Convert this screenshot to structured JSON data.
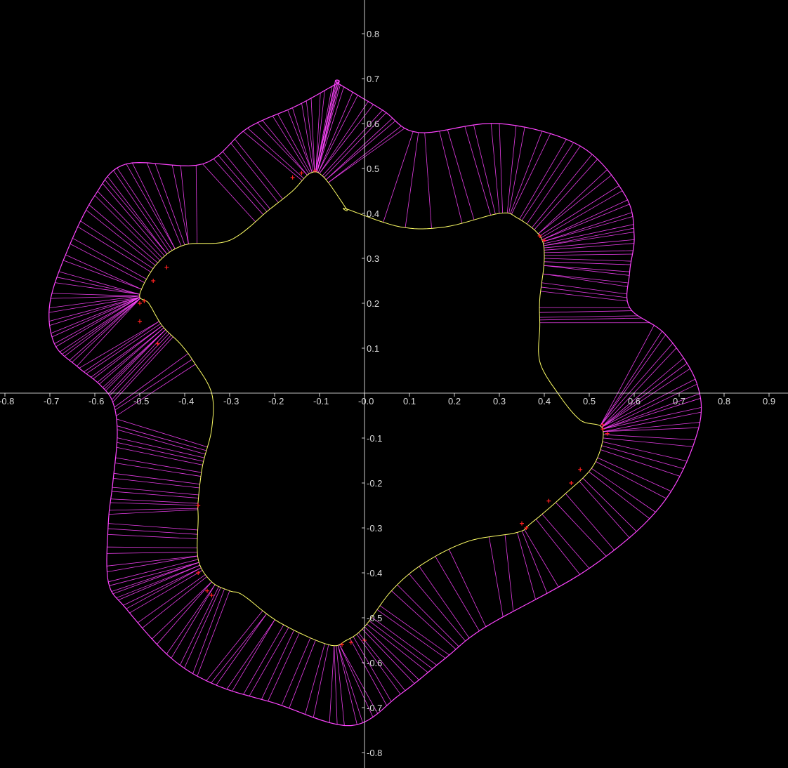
{
  "chart_data": {
    "type": "line",
    "title": "",
    "xlabel": "",
    "ylabel": "",
    "xlim": [
      -0.8,
      0.9
    ],
    "ylim": [
      -0.8,
      0.8
    ],
    "grid": false,
    "x_ticks": [
      "-0.8",
      "-0.7",
      "-0.6",
      "-0.5",
      "-0.4",
      "-0.3",
      "-0.2",
      "-0.1",
      "-0.0",
      "0.1",
      "0.2",
      "0.3",
      "0.4",
      "0.5",
      "0.6",
      "0.7",
      "0.8",
      "0.9"
    ],
    "y_ticks": [
      "0.8",
      "0.7",
      "0.6",
      "0.5",
      "0.4",
      "0.3",
      "0.2",
      "0.1",
      "-0.1",
      "-0.2",
      "-0.3",
      "-0.4",
      "-0.5",
      "-0.6",
      "-0.7",
      "-0.8"
    ],
    "x_tick_values": [
      -0.8,
      -0.7,
      -0.6,
      -0.5,
      -0.4,
      -0.3,
      -0.2,
      -0.1,
      0.0,
      0.1,
      0.2,
      0.3,
      0.4,
      0.5,
      0.6,
      0.7,
      0.8,
      0.9
    ],
    "y_tick_values": [
      0.8,
      0.7,
      0.6,
      0.5,
      0.4,
      0.3,
      0.2,
      0.1,
      -0.1,
      -0.2,
      -0.3,
      -0.4,
      -0.5,
      -0.6,
      -0.7,
      -0.8
    ],
    "colors": {
      "background": "#000000",
      "axes": "#ffffff",
      "inner_curve": "#ffff66",
      "outer_curve": "#ff44ff",
      "normals": "#ff44ff",
      "markers": "#ff2020"
    },
    "series": [
      {
        "kind": "inner",
        "x": [
          -0.04,
          0.08,
          0.18,
          0.3,
          0.34,
          0.39,
          0.4,
          0.39,
          0.39,
          0.39,
          0.43,
          0.48,
          0.53,
          0.51,
          0.44,
          0.37,
          0.34,
          0.23,
          0.13,
          0.06,
          0.0,
          -0.04,
          -0.08,
          -0.19,
          -0.27,
          -0.3,
          -0.34,
          -0.37,
          -0.37,
          -0.37,
          -0.36,
          -0.34,
          -0.34,
          -0.38,
          -0.41,
          -0.45,
          -0.48,
          -0.5,
          -0.46,
          -0.4,
          -0.3,
          -0.21,
          -0.16,
          -0.12,
          -0.09,
          -0.04
        ],
        "y": [
          0.41,
          0.37,
          0.37,
          0.4,
          0.39,
          0.35,
          0.3,
          0.21,
          0.15,
          0.07,
          0.0,
          -0.06,
          -0.08,
          -0.16,
          -0.23,
          -0.29,
          -0.31,
          -0.33,
          -0.38,
          -0.44,
          -0.52,
          -0.55,
          -0.56,
          -0.51,
          -0.45,
          -0.44,
          -0.42,
          -0.37,
          -0.28,
          -0.24,
          -0.16,
          -0.08,
          0.0,
          0.07,
          0.11,
          0.15,
          0.2,
          0.22,
          0.29,
          0.33,
          0.34,
          0.41,
          0.45,
          0.49,
          0.48,
          0.41
        ]
      },
      {
        "kind": "outer",
        "x": [
          -0.06,
          0.04,
          0.12,
          0.3,
          0.48,
          0.58,
          0.6,
          0.59,
          0.59,
          0.67,
          0.74,
          0.74,
          0.66,
          0.5,
          0.27,
          0.18,
          0.08,
          -0.03,
          -0.2,
          -0.33,
          -0.43,
          -0.53,
          -0.57,
          -0.57,
          -0.56,
          -0.55,
          -0.56,
          -0.59,
          -0.64,
          -0.69,
          -0.7,
          -0.66,
          -0.6,
          -0.53,
          -0.36,
          -0.26,
          -0.15,
          -0.06
        ],
        "y": [
          0.69,
          0.63,
          0.58,
          0.6,
          0.55,
          0.44,
          0.35,
          0.27,
          0.19,
          0.13,
          0.02,
          -0.09,
          -0.25,
          -0.39,
          -0.52,
          -0.59,
          -0.67,
          -0.74,
          -0.69,
          -0.65,
          -0.59,
          -0.48,
          -0.42,
          -0.29,
          -0.2,
          -0.09,
          -0.02,
          0.02,
          0.06,
          0.11,
          0.2,
          0.32,
          0.44,
          0.51,
          0.51,
          0.59,
          0.64,
          0.69
        ]
      }
    ]
  }
}
